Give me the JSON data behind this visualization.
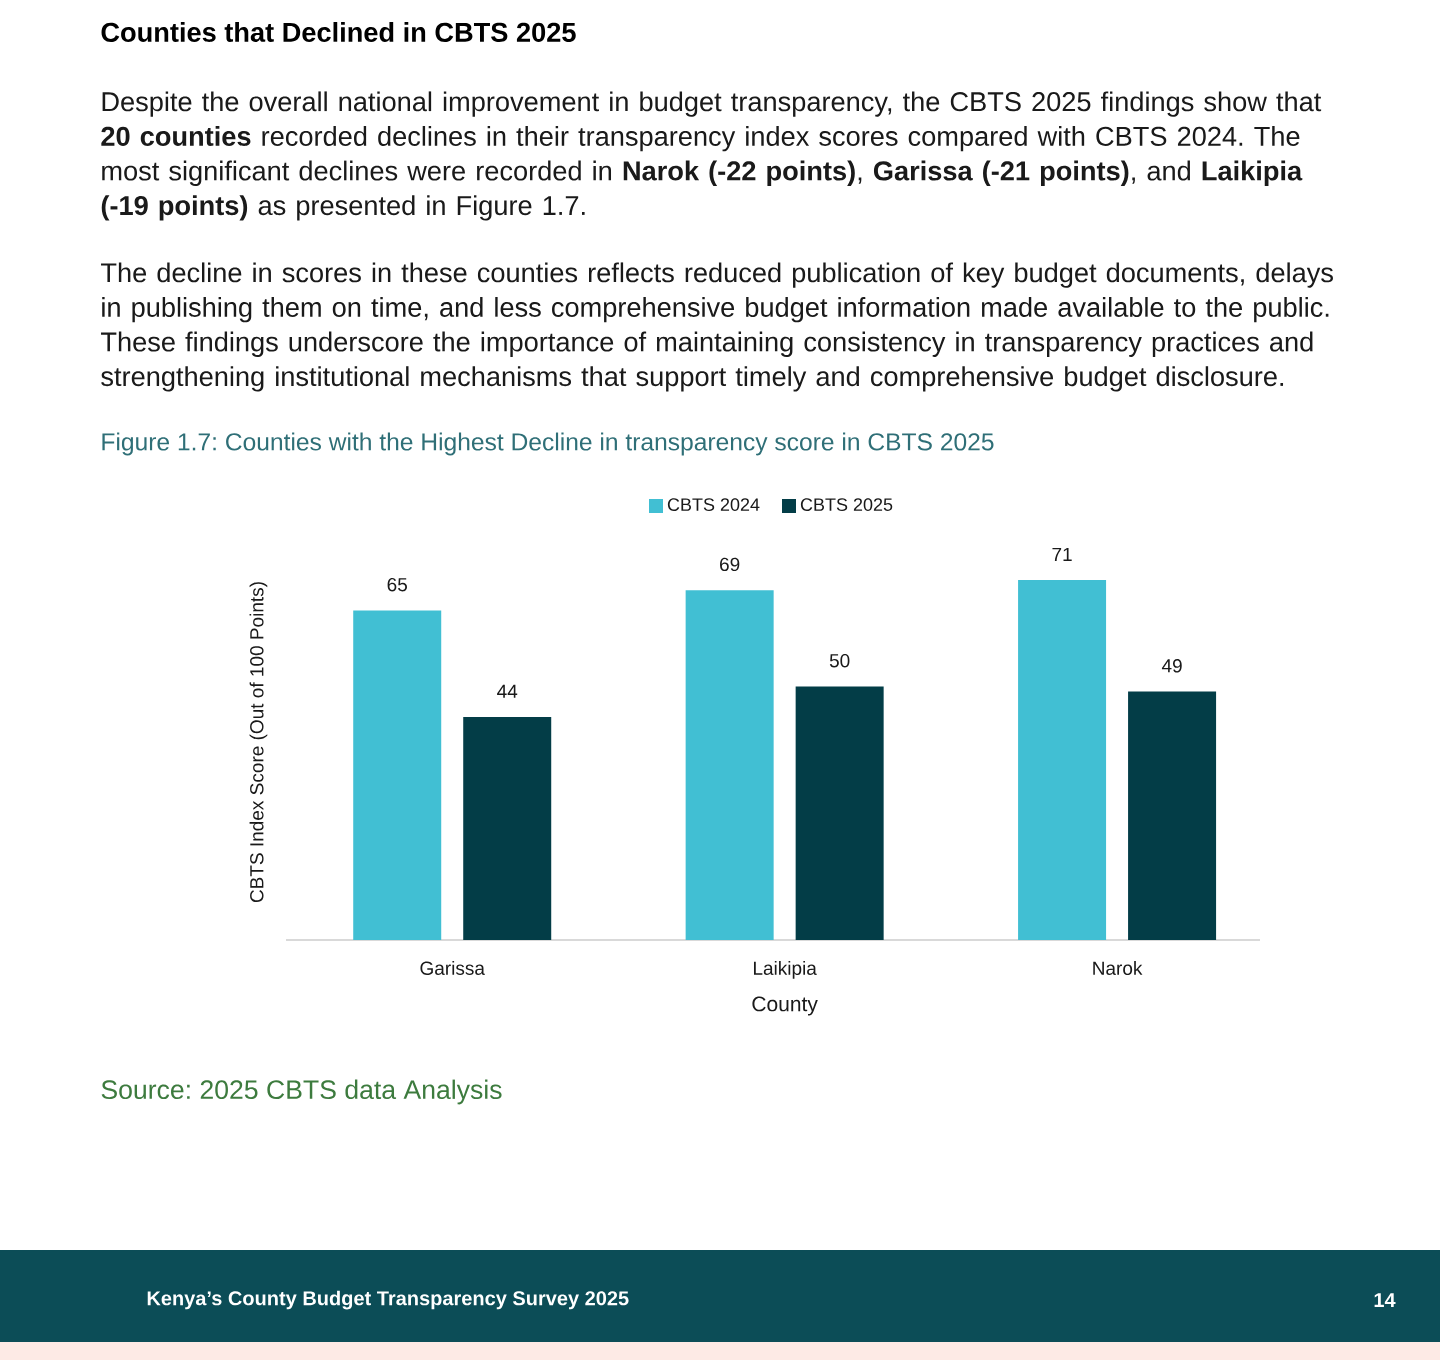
{
  "chart_data": {
    "type": "bar",
    "title": "Figure 1.7: Counties with the Highest Decline in transparency score in CBTS 2025",
    "xlabel": "County",
    "ylabel": "CBTS Index Score (Out of 100 Points)",
    "categories": [
      "Garissa",
      "Laikipia",
      "Narok"
    ],
    "series": [
      {
        "name": "CBTS 2024",
        "color": "#41bfd3",
        "values": [
          65,
          69,
          71
        ]
      },
      {
        "name": "CBTS 2025",
        "color": "#033d47",
        "values": [
          44,
          50,
          49
        ]
      }
    ],
    "data_labels": true,
    "legend": "top",
    "tick_labels": "x",
    "annotations": [
      "Counties that Declined in CBTS 2025",
      "Despite the overall national improvement in budget transparency, the CBTS 2025 findings show that **20 counties** recorded declines in their transparency index scores compared with CBTS 2024. The most significant declines were recorded in **Narok (-22 points)**, **Garissa (-21 points)**, and **Laikipia (-19 points)** as presented in Figure 1.7.",
      "The decline in scores in these counties reflects reduced publication of key budget documents, delays in publishing them on time, and less comprehensive budget information made available to the public. These findings underscore the importance of maintaining consistency in transparency practices and strengthening institutional mechanisms that support timely and comprehensive budget disclosure.",
      "Source: 2025 CBTS data Analysis",
      "Kenya’s County Budget Transparency Survey 2025",
      "14"
    ]
  }
}
